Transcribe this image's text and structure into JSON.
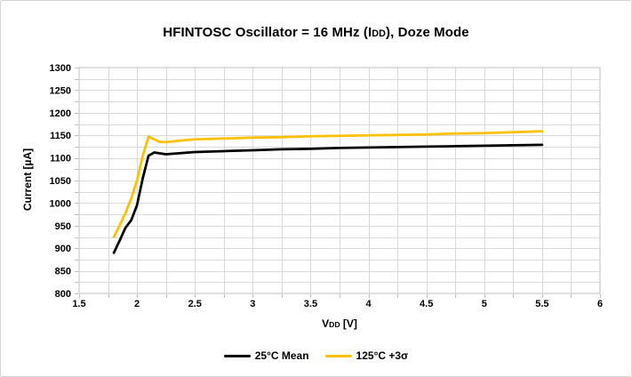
{
  "window": {
    "background": "#ffffff",
    "border_color": "#d4d4d4"
  },
  "title": {
    "pre": "HFINTOSC Oscillator = 16 MHz (I",
    "sub": "DD",
    "post": "), Doze Mode"
  },
  "axes": {
    "y_label": "Current [µA]",
    "x_label": {
      "pre": "V",
      "sub": "DD",
      "post": " [V]"
    }
  },
  "legend": [
    {
      "label": "25°C Mean",
      "color": "#000000"
    },
    {
      "label": "125°C +3σ",
      "color": "#FFC000"
    }
  ],
  "chart_data": {
    "type": "line",
    "title": "HFINTOSC Oscillator = 16 MHz (IDD), Doze Mode",
    "xlabel": "VDD [V]",
    "ylabel": "Current [µA]",
    "xlim": [
      1.5,
      6
    ],
    "ylim": [
      800,
      1300
    ],
    "x_major_step": 0.5,
    "x_minor_step": 0.25,
    "y_major_step": 50,
    "y_minor_step": 25,
    "x_ticks": [
      "1.5",
      "2",
      "2.5",
      "3",
      "3.5",
      "4",
      "4.5",
      "5",
      "5.5",
      "6"
    ],
    "y_ticks": [
      "1300",
      "1250",
      "1200",
      "1150",
      "1100",
      "1050",
      "1000",
      "950",
      "900",
      "850",
      "800"
    ],
    "grid": true,
    "grid_color": "#d9d9d9",
    "border_color": "#bfbfbf",
    "tick_color": "#bfbfbf",
    "legend_position": "bottom",
    "x": [
      1.8,
      1.85,
      1.9,
      1.95,
      2.0,
      2.05,
      2.1,
      2.15,
      2.2,
      2.25,
      2.3,
      2.4,
      2.5,
      2.75,
      3.0,
      3.25,
      3.5,
      3.75,
      4.0,
      4.25,
      4.5,
      4.75,
      5.0,
      5.25,
      5.5
    ],
    "series": [
      {
        "name": "25°C Mean",
        "color": "#000000",
        "values": [
          890,
          917,
          945,
          962,
          995,
          1055,
          1105,
          1112,
          1110,
          1108,
          1109,
          1111,
          1113,
          1115,
          1117,
          1119,
          1120,
          1122,
          1123,
          1124,
          1125,
          1126,
          1127,
          1128,
          1129
        ]
      },
      {
        "name": "125°C +3σ",
        "color": "#FFC000",
        "values": [
          925,
          951,
          978,
          1010,
          1050,
          1105,
          1147,
          1141,
          1135,
          1135,
          1136,
          1139,
          1141,
          1143,
          1145,
          1146,
          1148,
          1149,
          1150,
          1151,
          1152,
          1154,
          1155,
          1157,
          1159
        ]
      }
    ]
  }
}
